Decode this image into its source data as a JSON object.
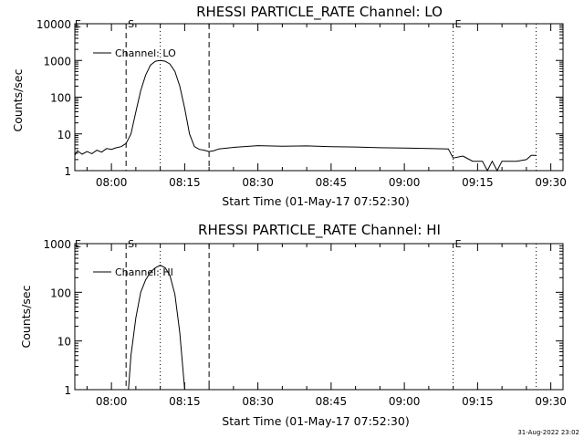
{
  "chart_data": [
    {
      "type": "line",
      "title": "RHESSI PARTICLE_RATE Channel: LO",
      "xlabel": "Start Time (01-May-17 07:52:30)",
      "ylabel": "Counts/sec",
      "yscale": "log",
      "ylim": [
        1,
        10000
      ],
      "xlim": [
        "07:52:30",
        "09:32:30"
      ],
      "x_tick_labels": [
        "08:00",
        "08:15",
        "08:30",
        "08:45",
        "09:00",
        "09:15",
        "09:30"
      ],
      "y_tick_labels": [
        "1",
        "10",
        "100",
        "1000",
        "10000"
      ],
      "legend": {
        "position": "top-left",
        "entries": [
          "Channel: LO"
        ]
      },
      "markers": [
        {
          "label": "S",
          "x": "08:03",
          "style": "dashed"
        },
        {
          "label": "",
          "x": "08:10",
          "style": "dotted"
        },
        {
          "label": "",
          "x": "08:20",
          "style": "dashed"
        },
        {
          "label": "E",
          "x": "09:10",
          "style": "dotted"
        },
        {
          "label": "",
          "x": "09:27",
          "style": "dotted"
        }
      ],
      "corner_label": "E",
      "series": [
        {
          "name": "Channel: LO",
          "points": [
            [
              "07:52:30",
              2.6
            ],
            [
              "07:53",
              3.5
            ],
            [
              "07:54",
              2.8
            ],
            [
              "07:55",
              3.3
            ],
            [
              "07:56",
              2.9
            ],
            [
              "07:57",
              3.6
            ],
            [
              "07:58",
              3.2
            ],
            [
              "07:59",
              4.0
            ],
            [
              "08:00",
              3.8
            ],
            [
              "08:01",
              4.2
            ],
            [
              "08:02",
              4.5
            ],
            [
              "08:03",
              5.5
            ],
            [
              "08:04",
              10
            ],
            [
              "08:05",
              40
            ],
            [
              "08:06",
              150
            ],
            [
              "08:07",
              400
            ],
            [
              "08:08",
              750
            ],
            [
              "08:09",
              950
            ],
            [
              "08:10",
              1000
            ],
            [
              "08:11",
              950
            ],
            [
              "08:12",
              800
            ],
            [
              "08:13",
              500
            ],
            [
              "08:14",
              200
            ],
            [
              "08:15",
              50
            ],
            [
              "08:16",
              10
            ],
            [
              "08:17",
              4.5
            ],
            [
              "08:18",
              3.8
            ],
            [
              "08:19",
              3.6
            ],
            [
              "08:20",
              3.3
            ],
            [
              "08:21",
              3.5
            ],
            [
              "08:22",
              3.9
            ],
            [
              "08:25",
              4.3
            ],
            [
              "08:30",
              4.8
            ],
            [
              "08:35",
              4.6
            ],
            [
              "08:40",
              4.7
            ],
            [
              "08:45",
              4.5
            ],
            [
              "08:50",
              4.4
            ],
            [
              "08:55",
              4.2
            ],
            [
              "09:00",
              4.1
            ],
            [
              "09:05",
              4.0
            ],
            [
              "09:09",
              3.9
            ],
            [
              "09:10",
              2.2
            ],
            [
              "09:12",
              2.5
            ],
            [
              "09:14",
              1.8
            ],
            [
              "09:16",
              1.8
            ],
            [
              "09:17",
              1.0
            ],
            [
              "09:18",
              1.8
            ],
            [
              "09:19",
              1.0
            ],
            [
              "09:20",
              1.8
            ],
            [
              "09:23",
              1.8
            ],
            [
              "09:25",
              2.0
            ],
            [
              "09:26",
              2.6
            ],
            [
              "09:27",
              2.6
            ]
          ]
        }
      ]
    },
    {
      "type": "line",
      "title": "RHESSI PARTICLE_RATE Channel: HI",
      "xlabel": "Start Time (01-May-17 07:52:30)",
      "ylabel": "Counts/sec",
      "yscale": "log",
      "ylim": [
        1,
        1000
      ],
      "xlim": [
        "07:52:30",
        "09:32:30"
      ],
      "x_tick_labels": [
        "08:00",
        "08:15",
        "08:30",
        "08:45",
        "09:00",
        "09:15",
        "09:30"
      ],
      "y_tick_labels": [
        "1",
        "10",
        "100",
        "1000"
      ],
      "legend": {
        "position": "top-left",
        "entries": [
          "Channel: HI"
        ]
      },
      "markers": [
        {
          "label": "S",
          "x": "08:03",
          "style": "dashed"
        },
        {
          "label": "",
          "x": "08:10",
          "style": "dotted"
        },
        {
          "label": "",
          "x": "08:20",
          "style": "dashed"
        },
        {
          "label": "E",
          "x": "09:10",
          "style": "dotted"
        },
        {
          "label": "",
          "x": "09:27",
          "style": "dotted"
        }
      ],
      "corner_label": "E",
      "series": [
        {
          "name": "Channel: HI",
          "points": [
            [
              "08:03:30",
              1.0
            ],
            [
              "08:04",
              5
            ],
            [
              "08:05",
              30
            ],
            [
              "08:06",
              100
            ],
            [
              "08:07",
              180
            ],
            [
              "08:08",
              260
            ],
            [
              "08:09",
              320
            ],
            [
              "08:10",
              360
            ],
            [
              "08:11",
              320
            ],
            [
              "08:12",
              220
            ],
            [
              "08:13",
              90
            ],
            [
              "08:14",
              15
            ],
            [
              "08:15",
              1.0
            ]
          ]
        }
      ]
    }
  ],
  "footer": {
    "timestamp": "31-Aug-2022 23:02"
  }
}
